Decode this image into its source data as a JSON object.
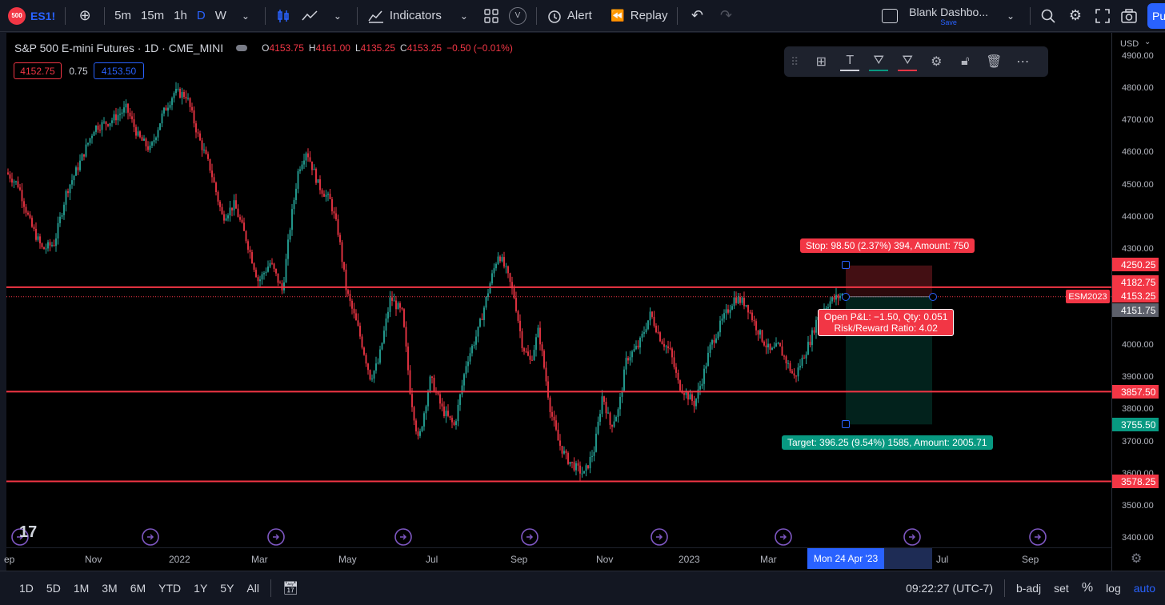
{
  "topbar": {
    "symbol_badge": "500",
    "symbol": "ES1!",
    "intervals": [
      "5m",
      "15m",
      "1h",
      "D",
      "W"
    ],
    "indicators_label": "Indicators",
    "alert_label": "Alert",
    "replay_label": "Replay",
    "layout_name": "Blank Dashbo...",
    "layout_status": "Save",
    "publish_label": "Pu"
  },
  "legend": {
    "title": "S&P 500 E-mini Futures · 1D · CME_MINI",
    "open_lbl": "O",
    "open": "4153.75",
    "high_lbl": "H",
    "high": "4161.00",
    "low_lbl": "L",
    "low": "4135.25",
    "close_lbl": "C",
    "close": "4153.25",
    "change": "−0.50 (−0.01%)",
    "bid": "4152.75",
    "spread": "0.75",
    "ask": "4153.50"
  },
  "price_axis": {
    "currency": "USD",
    "ticks": [
      "4900.00",
      "4800.00",
      "4700.00",
      "4600.00",
      "4500.00",
      "4400.00",
      "4300.00",
      "4000.00",
      "3900.00",
      "3800.00",
      "3700.00",
      "3600.00",
      "3500.00",
      "3400.00"
    ],
    "tags": [
      {
        "label": "4250.25",
        "color": "#f23645"
      },
      {
        "label": "4182.75",
        "color": "#f23645"
      },
      {
        "label": "4153.25",
        "color": "#f23645"
      },
      {
        "label": "4151.75",
        "color": "#5d606b"
      },
      {
        "label": "3857.50",
        "color": "#f23645"
      },
      {
        "label": "3755.50",
        "color": "#089981"
      },
      {
        "label": "3578.25",
        "color": "#f23645"
      }
    ],
    "contract_tag": "ESM2023"
  },
  "time_axis": {
    "labels": [
      "ep",
      "Nov",
      "2022",
      "Mar",
      "May",
      "Jul",
      "Sep",
      "Nov",
      "2023",
      "Mar",
      "Jul",
      "Sep"
    ],
    "crosshair_label": "Mon 24 Apr '23"
  },
  "position_tool": {
    "stop_label": "Stop: 98.50 (2.37%) 394, Amount: 750",
    "target_label": "Target: 396.25 (9.54%) 1585, Amount: 2005.71",
    "pnl_label": "Open P&L: −1.50, Qty: 0.051",
    "rr_label": "Risk/Reward Ratio: 4.02"
  },
  "chart_data": {
    "type": "candlestick",
    "ylim": [
      3400,
      4950
    ],
    "horizontal_levels": [
      4182.75,
      3857.5,
      3578.25
    ],
    "series_close_approx": [
      4550,
      4450,
      4350,
      4600,
      4700,
      4750,
      4800,
      4650,
      4400,
      4300,
      4200,
      4150,
      4500,
      4600,
      4450,
      4250,
      4100,
      3950,
      3800,
      3700,
      3950,
      4000,
      4150,
      4300,
      4200,
      4000,
      3900,
      3700,
      3600,
      3700,
      3850,
      4050,
      4100,
      3950,
      3850,
      4000,
      4100,
      4150,
      4100,
      4000,
      3900,
      4050,
      4150
    ],
    "date_range": [
      "Sep 2021",
      "Apr 2023"
    ],
    "grid": false
  },
  "bottombar": {
    "ranges": [
      "1D",
      "5D",
      "1M",
      "3M",
      "6M",
      "YTD",
      "1Y",
      "5Y",
      "All"
    ],
    "clock": "09:22:27 (UTC-7)",
    "badj": "b-adj",
    "set": "set",
    "pct": "%",
    "log": "log",
    "auto": "auto"
  }
}
